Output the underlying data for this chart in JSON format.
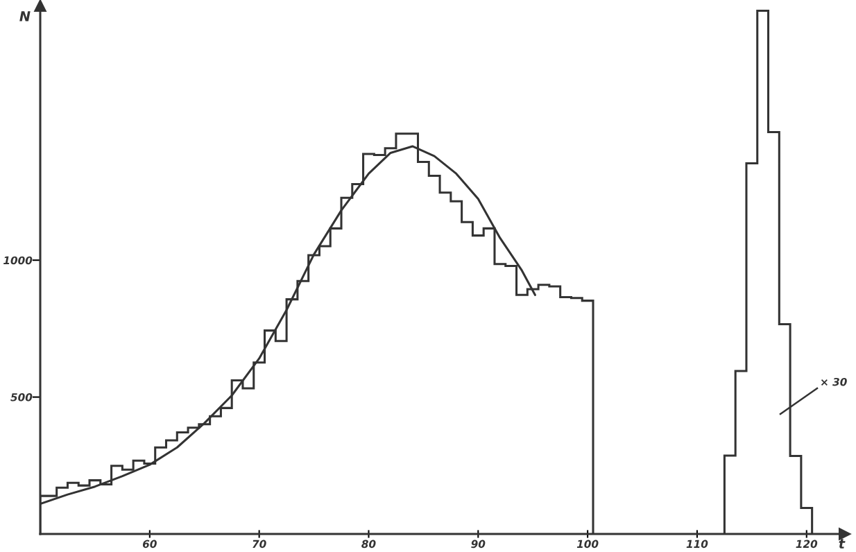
{
  "chart_data": {
    "type": "histogram",
    "xlabel": "t",
    "ylabel": "N",
    "xlim": [
      50,
      123.5
    ],
    "ylim": [
      0,
      1930
    ],
    "xticks": [
      60,
      70,
      80,
      90,
      100,
      110,
      120
    ],
    "yticks": [
      500,
      1000
    ],
    "grid": false,
    "legend": false,
    "series": [
      {
        "color": "#333333",
        "bins": [
          50,
          51.5,
          52.5,
          53.5,
          54.5,
          55.5,
          56.5,
          57.5,
          58.5,
          59.5,
          60.5,
          61.5,
          62.5,
          63.5,
          64.5,
          65.5,
          66.5,
          67.5,
          68.5,
          69.5,
          70.5,
          71.5,
          72.5,
          73.5,
          74.5,
          75.5,
          76.5,
          77.5,
          78.5,
          79.5,
          80.5,
          81.5,
          82.5,
          83.5,
          84.5,
          85.5,
          86.5,
          87.5,
          88.5,
          89.5,
          90.5,
          91.5,
          92.5,
          93.5,
          94.5,
          95.5,
          96.5,
          97.5,
          98.5,
          99.5,
          100.5
        ],
        "values": [
          139,
          169,
          187,
          177,
          196,
          181,
          249,
          235,
          268,
          257,
          316,
          342,
          371,
          388,
          401,
          430,
          460,
          561,
          532,
          626,
          743,
          705,
          857,
          924,
          1018,
          1051,
          1116,
          1228,
          1278,
          1388,
          1384,
          1409,
          1462,
          1462,
          1359,
          1308,
          1247,
          1215,
          1139,
          1090,
          1116,
          986,
          979,
          873,
          894,
          910,
          904,
          865,
          862,
          852
        ]
      },
      {
        "color": "#333333",
        "bins": [
          112.5,
          113.5,
          114.5,
          115.5,
          116.5,
          117.5,
          118.5,
          119.5,
          120.5
        ],
        "values": [
          286,
          595,
          1354,
          1911,
          1468,
          766,
          285,
          95
        ]
      },
      {
        "type": "line",
        "color": "#333333",
        "x": [
          50,
          52.5,
          55,
          57.5,
          60,
          62.5,
          65,
          67.5,
          70,
          72.5,
          75,
          77.5,
          80,
          82,
          84,
          86,
          88,
          90,
          92,
          94,
          95.2
        ],
        "values": [
          110,
          144,
          173,
          211,
          253,
          316,
          405,
          506,
          641,
          818,
          1021,
          1182,
          1316,
          1392,
          1416,
          1380,
          1316,
          1224,
          1081,
          962,
          873
        ]
      }
    ],
    "annotations": [
      "× 30"
    ]
  }
}
